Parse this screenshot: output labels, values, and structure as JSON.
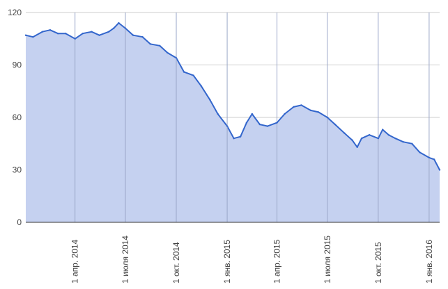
{
  "chart_data": {
    "type": "area",
    "title": "",
    "xlabel": "",
    "ylabel": "",
    "ylim": [
      0,
      120
    ],
    "y_ticks": [
      0,
      30,
      60,
      90,
      120
    ],
    "xlim": [
      "2014-01-02",
      "2016-01-20"
    ],
    "x_ticks": [
      {
        "date": "2014-04-01",
        "label": "1 апр. 2014"
      },
      {
        "date": "2014-07-01",
        "label": "1 июля 2014"
      },
      {
        "date": "2014-10-01",
        "label": "1 окт. 2014"
      },
      {
        "date": "2015-01-01",
        "label": "1 янв. 2015"
      },
      {
        "date": "2015-04-01",
        "label": "1 апр. 2015"
      },
      {
        "date": "2015-07-01",
        "label": "1 июля 2015"
      },
      {
        "date": "2015-10-01",
        "label": "1 окт. 2015"
      },
      {
        "date": "2016-01-01",
        "label": "1 янв. 2016"
      }
    ],
    "grid": true,
    "legend": "none",
    "colors": {
      "line": "#3366cc",
      "fill": "#c5d1f0"
    },
    "series": [
      {
        "x": [
          "2014-01-02",
          "2014-01-15",
          "2014-02-01",
          "2014-02-15",
          "2014-03-01",
          "2014-03-15",
          "2014-04-01",
          "2014-04-15",
          "2014-05-01",
          "2014-05-15",
          "2014-06-01",
          "2014-06-10",
          "2014-06-19",
          "2014-07-01",
          "2014-07-15",
          "2014-08-01",
          "2014-08-15",
          "2014-09-01",
          "2014-09-15",
          "2014-10-01",
          "2014-10-15",
          "2014-11-01",
          "2014-11-15",
          "2014-12-01",
          "2014-12-15",
          "2015-01-01",
          "2015-01-13",
          "2015-01-25",
          "2015-02-05",
          "2015-02-15",
          "2015-03-01",
          "2015-03-15",
          "2015-04-01",
          "2015-04-15",
          "2015-05-01",
          "2015-05-15",
          "2015-06-01",
          "2015-06-15",
          "2015-07-01",
          "2015-07-15",
          "2015-08-01",
          "2015-08-15",
          "2015-08-24",
          "2015-09-01",
          "2015-09-15",
          "2015-10-01",
          "2015-10-09",
          "2015-10-20",
          "2015-11-01",
          "2015-11-15",
          "2015-12-01",
          "2015-12-15",
          "2016-01-01",
          "2016-01-10",
          "2016-01-20"
        ],
        "values": [
          107,
          106,
          109,
          110,
          108,
          108,
          105,
          108,
          109,
          107,
          109,
          111,
          114,
          111,
          107,
          106,
          102,
          101,
          97,
          94,
          86,
          84,
          78,
          70,
          62,
          55,
          48,
          49,
          57,
          62,
          56,
          55,
          57,
          62,
          66,
          67,
          64,
          63,
          60,
          56,
          51,
          47,
          43,
          48,
          50,
          48,
          53,
          50,
          48,
          46,
          45,
          40,
          37,
          36,
          30
        ]
      }
    ]
  }
}
